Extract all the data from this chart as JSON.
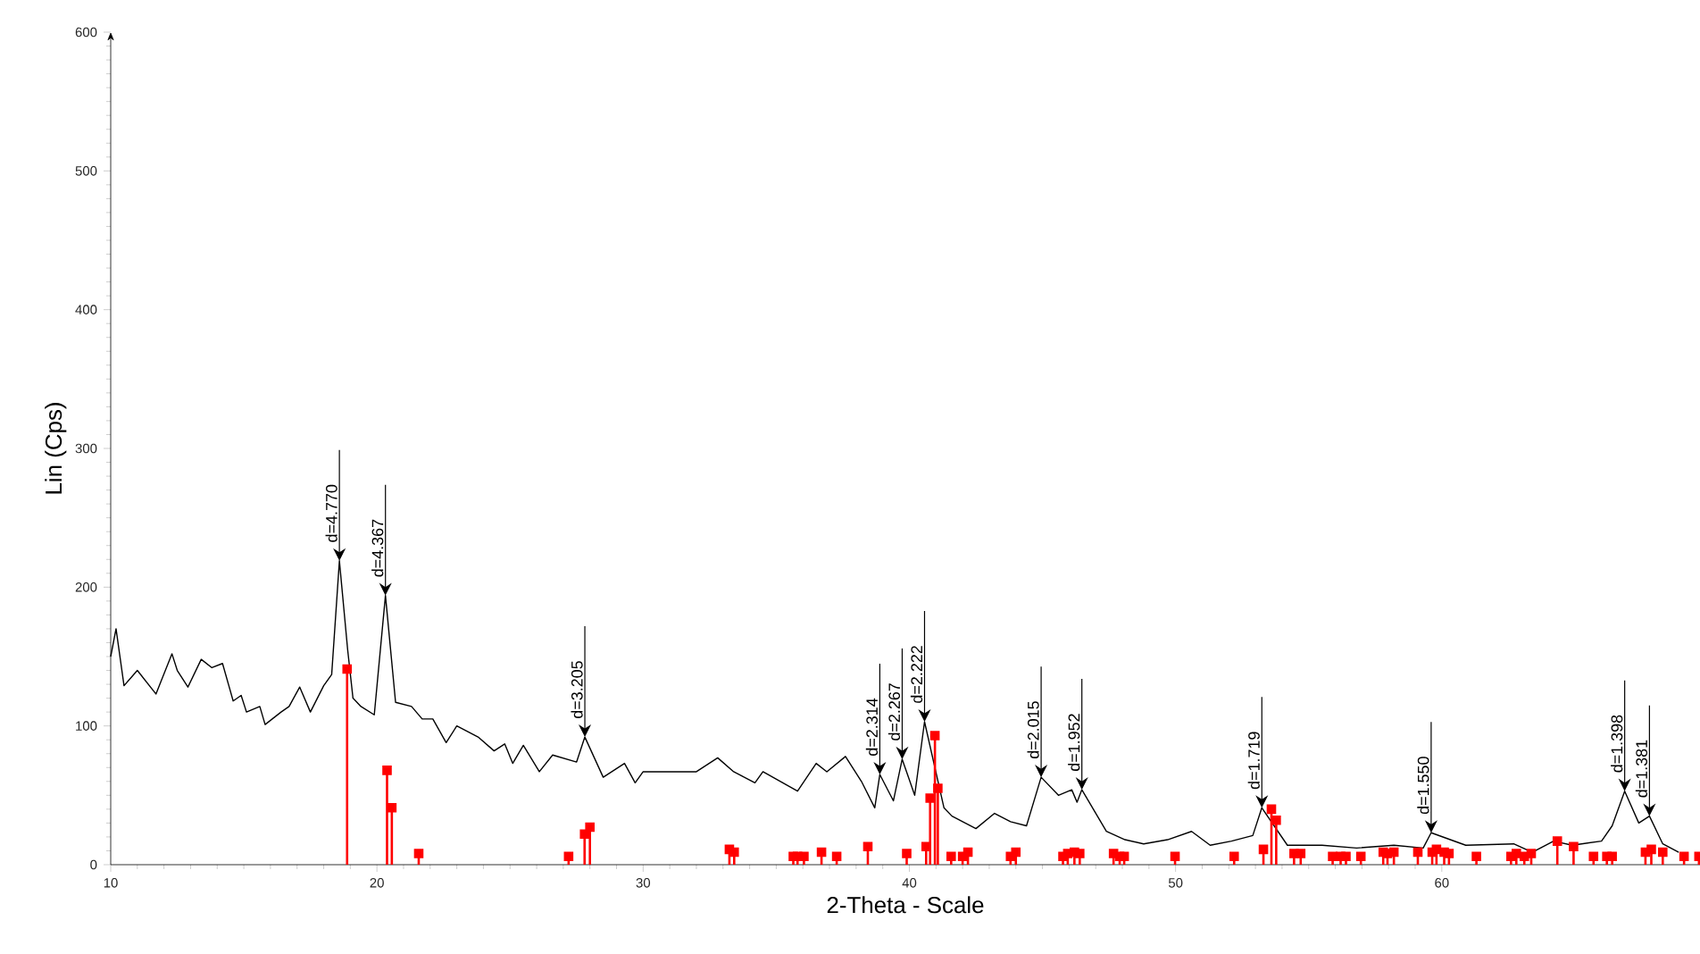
{
  "chart_data": {
    "type": "line",
    "xlabel": "2-Theta - Scale",
    "ylabel": "Lin (Cps)",
    "xlim": [
      10,
      69.7
    ],
    "ylim": [
      0,
      600
    ],
    "xticks": [
      10,
      20,
      30,
      40,
      50,
      60
    ],
    "yticks": [
      0,
      100,
      200,
      300,
      400,
      500,
      600
    ],
    "series": [
      {
        "color": "#000000",
        "x": [
          10,
          10.2,
          10.5,
          11,
          11.7,
          12.3,
          12.5,
          12.9,
          13.4,
          13.8,
          14.2,
          14.6,
          14.9,
          15.1,
          15.6,
          15.8,
          16.4,
          16.7,
          17.1,
          17.5,
          18,
          18.3,
          18.59,
          18.9,
          19.1,
          19.4,
          19.9,
          20.32,
          20.7,
          21.3,
          21.7,
          22.1,
          22.6,
          23,
          23.8,
          24.4,
          24.8,
          25.1,
          25.5,
          26.1,
          26.6,
          27.5,
          27.81,
          28.5,
          29.3,
          29.7,
          30,
          32,
          32.8,
          33.4,
          34.2,
          34.5,
          35.8,
          36.5,
          36.9,
          37.6,
          38.2,
          38.7,
          38.89,
          39.4,
          39.73,
          40.2,
          40.57,
          41.3,
          41.6,
          42.5,
          43.2,
          43.8,
          44.4,
          44.95,
          45.6,
          46.1,
          46.3,
          46.48,
          47.4,
          48.1,
          48.8,
          49.7,
          50.6,
          51.3,
          52.1,
          52.9,
          53.24,
          54.2,
          55.5,
          56.8,
          58.2,
          59.3,
          59.6,
          60.9,
          62.7,
          63.4,
          64.2,
          64.9,
          66,
          66.4,
          66.87,
          67.4,
          67.8,
          68.3,
          68.9
        ],
        "values": [
          150,
          170,
          129,
          140,
          123,
          152,
          140,
          128,
          148,
          142,
          145,
          118,
          122,
          110,
          114,
          101,
          110,
          114,
          128,
          110,
          129,
          137,
          219,
          155,
          120,
          114,
          108,
          194,
          117,
          114,
          105,
          105,
          88,
          100,
          92,
          82,
          87,
          73,
          86,
          67,
          79,
          74,
          92,
          63,
          73,
          59,
          67,
          67,
          77,
          67,
          59,
          67,
          53,
          73,
          67,
          78,
          60,
          41,
          65,
          46,
          76,
          50,
          103,
          41,
          35,
          26,
          37,
          31,
          28,
          63,
          50,
          54,
          45,
          54,
          24,
          18,
          15,
          18,
          24,
          14,
          17,
          21,
          41,
          14,
          14,
          12,
          14,
          12,
          23,
          14,
          15,
          9,
          17,
          14,
          17,
          28,
          53,
          30,
          35,
          15,
          9
        ]
      },
      {
        "type": "lollipop",
        "color": "#ff0000",
        "marker": "square",
        "x": [
          18.88,
          20.38,
          20.56,
          21.57,
          27.2,
          27.8,
          28.0,
          33.24,
          33.42,
          35.64,
          35.8,
          36.04,
          36.7,
          37.27,
          38.44,
          39.9,
          40.63,
          40.78,
          40.96,
          41.07,
          41.57,
          42.0,
          42.2,
          43.8,
          44.0,
          45.77,
          45.95,
          46.2,
          46.4,
          47.67,
          47.9,
          48.07,
          49.98,
          52.2,
          53.3,
          53.6,
          53.78,
          54.45,
          54.7,
          55.9,
          56.2,
          56.4,
          56.96,
          57.8,
          57.96,
          58.2,
          59.1,
          59.64,
          59.8,
          60.09,
          60.27,
          61.3,
          62.6,
          62.8,
          63.1,
          63.36,
          64.34,
          64.95,
          65.7,
          66.2,
          66.4,
          67.65,
          67.87,
          68.3,
          69.1,
          69.66
        ],
        "values": [
          141,
          68,
          41,
          8,
          6,
          22,
          27,
          11,
          9,
          6,
          6,
          6,
          9,
          6,
          13,
          8,
          13,
          48,
          93,
          55,
          6,
          6,
          9,
          6,
          9,
          6,
          8,
          9,
          8,
          8,
          6,
          6,
          6,
          6,
          11,
          40,
          32,
          8,
          8,
          6,
          6,
          6,
          6,
          9,
          8,
          9,
          9,
          9,
          11,
          9,
          8,
          6,
          6,
          8,
          6,
          8,
          17,
          13,
          6,
          6,
          6,
          9,
          11,
          9,
          6,
          6
        ]
      }
    ],
    "annotations": [
      {
        "text": "d=4.770",
        "x": 18.59,
        "y": 219
      },
      {
        "text": "d=4.367",
        "x": 20.32,
        "y": 194
      },
      {
        "text": "d=3.205",
        "x": 27.81,
        "y": 92
      },
      {
        "text": "d=2.314",
        "x": 38.89,
        "y": 65
      },
      {
        "text": "d=2.267",
        "x": 39.73,
        "y": 76
      },
      {
        "text": "d=2.222",
        "x": 40.57,
        "y": 103
      },
      {
        "text": "d=2.015",
        "x": 44.95,
        "y": 63
      },
      {
        "text": "d=1.952",
        "x": 46.48,
        "y": 54
      },
      {
        "text": "d=1.719",
        "x": 53.24,
        "y": 41
      },
      {
        "text": "d=1.550",
        "x": 59.6,
        "y": 23
      },
      {
        "text": "d=1.398",
        "x": 66.87,
        "y": 53
      },
      {
        "text": "d=1.381",
        "x": 67.8,
        "y": 35
      }
    ]
  }
}
